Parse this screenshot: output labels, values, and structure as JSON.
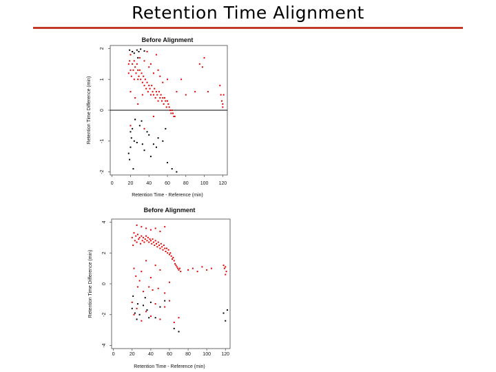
{
  "slide": {
    "title": "Retention Time Alignment"
  },
  "colors": {
    "accent_rule": "#c0392b",
    "matched_points": "#e00000",
    "other_points": "#000000"
  },
  "chart_data": [
    {
      "type": "scatter",
      "title": "Before Alignment",
      "xlabel": "Retention Time - Reference (min)",
      "ylabel": "Retention Time Difference (min)",
      "xlim": [
        -2,
        125
      ],
      "ylim": [
        -2.1,
        2.1
      ],
      "xticks": [
        0,
        20,
        40,
        60,
        80,
        100,
        120
      ],
      "yticks": [
        -2,
        -1,
        0,
        1,
        2
      ],
      "reference_line_y": 0,
      "grid": false,
      "legend": "none",
      "series": [
        {
          "color": "#e00000",
          "points": [
            [
              18,
              1.5
            ],
            [
              18,
              1.2
            ],
            [
              19,
              1.6
            ],
            [
              20,
              1.3
            ],
            [
              20,
              1.8
            ],
            [
              21,
              1.1
            ],
            [
              22,
              1.5
            ],
            [
              22,
              1.9
            ],
            [
              23,
              1.3
            ],
            [
              24,
              1.0
            ],
            [
              24,
              1.6
            ],
            [
              25,
              1.4
            ],
            [
              26,
              1.2
            ],
            [
              27,
              1.5
            ],
            [
              28,
              1.3
            ],
            [
              28,
              1.0
            ],
            [
              29,
              1.1
            ],
            [
              30,
              1.3
            ],
            [
              31,
              1.0
            ],
            [
              32,
              1.2
            ],
            [
              33,
              0.9
            ],
            [
              34,
              1.1
            ],
            [
              35,
              0.8
            ],
            [
              36,
              1.0
            ],
            [
              37,
              0.7
            ],
            [
              38,
              0.9
            ],
            [
              39,
              0.6
            ],
            [
              40,
              0.8
            ],
            [
              41,
              0.7
            ],
            [
              42,
              0.5
            ],
            [
              43,
              0.8
            ],
            [
              44,
              0.6
            ],
            [
              45,
              0.5
            ],
            [
              46,
              0.7
            ],
            [
              47,
              0.4
            ],
            [
              48,
              0.6
            ],
            [
              49,
              0.5
            ],
            [
              50,
              0.3
            ],
            [
              51,
              0.6
            ],
            [
              52,
              0.4
            ],
            [
              53,
              0.5
            ],
            [
              54,
              0.3
            ],
            [
              55,
              0.4
            ],
            [
              56,
              0.2
            ],
            [
              57,
              0.4
            ],
            [
              58,
              0.3
            ],
            [
              59,
              0.1
            ],
            [
              60,
              0.3
            ],
            [
              61,
              0.2
            ],
            [
              62,
              0.1
            ],
            [
              63,
              0.0
            ],
            [
              64,
              -0.1
            ],
            [
              65,
              0.0
            ],
            [
              66,
              -0.1
            ],
            [
              67,
              -0.2
            ],
            [
              68,
              -0.2
            ],
            [
              20,
              0.6
            ],
            [
              25,
              0.4
            ],
            [
              30,
              1.7
            ],
            [
              35,
              1.6
            ],
            [
              40,
              1.4
            ],
            [
              45,
              1.2
            ],
            [
              50,
              1.3
            ],
            [
              55,
              0.9
            ],
            [
              60,
              1.0
            ],
            [
              48,
              1.8
            ],
            [
              20,
              -0.5
            ],
            [
              25,
              -0.3
            ],
            [
              35,
              -0.6
            ],
            [
              45,
              -0.2
            ],
            [
              38,
              1.9
            ],
            [
              42,
              1.5
            ],
            [
              52,
              1.1
            ],
            [
              28,
              0.2
            ],
            [
              33,
              0.5
            ],
            [
              70,
              0.6
            ],
            [
              75,
              1.0
            ],
            [
              80,
              0.5
            ],
            [
              90,
              0.6
            ],
            [
              95,
              1.5
            ],
            [
              98,
              1.4
            ],
            [
              100,
              1.7
            ],
            [
              104,
              0.6
            ],
            [
              117,
              0.8
            ],
            [
              118,
              0.5
            ],
            [
              119,
              0.3
            ],
            [
              120,
              0.2
            ],
            [
              121,
              0.5
            ],
            [
              120,
              0.1
            ]
          ]
        },
        {
          "color": "#000000",
          "points": [
            [
              19,
              1.95
            ],
            [
              22,
              1.9
            ],
            [
              24,
              1.85
            ],
            [
              27,
              1.95
            ],
            [
              29,
              1.9
            ],
            [
              31,
              1.98
            ],
            [
              35,
              1.92
            ],
            [
              28,
              1.7
            ],
            [
              20,
              -0.7
            ],
            [
              21,
              -0.9
            ],
            [
              18,
              -1.4
            ],
            [
              20,
              -1.2
            ],
            [
              22,
              -0.6
            ],
            [
              24,
              -1.0
            ],
            [
              27,
              -1.05
            ],
            [
              30,
              -0.5
            ],
            [
              33,
              -1.1
            ],
            [
              35,
              -1.3
            ],
            [
              40,
              -0.8
            ],
            [
              45,
              -1.1
            ],
            [
              48,
              -1.2
            ],
            [
              55,
              -1.0
            ],
            [
              60,
              -1.7
            ],
            [
              65,
              -1.9
            ],
            [
              70,
              -2.0
            ],
            [
              19,
              -1.6
            ],
            [
              25,
              -0.3
            ],
            [
              32,
              -0.35
            ],
            [
              50,
              -0.9
            ],
            [
              38,
              -0.7
            ],
            [
              42,
              -1.5
            ],
            [
              23,
              -1.9
            ],
            [
              58,
              -0.6
            ]
          ]
        }
      ]
    },
    {
      "type": "scatter",
      "title": "Before Alignment",
      "xlabel": "Retention Time - Reference (min)",
      "ylabel": "Retention Time Difference (min)",
      "xlim": [
        -2,
        125
      ],
      "ylim": [
        -4.2,
        4.2
      ],
      "xticks": [
        0,
        20,
        40,
        60,
        80,
        100,
        120
      ],
      "yticks": [
        -4,
        -2,
        0,
        2,
        4
      ],
      "grid": false,
      "legend": "none",
      "series": [
        {
          "color": "#e00000",
          "points": [
            [
              20,
              3.0
            ],
            [
              21,
              2.5
            ],
            [
              22,
              3.3
            ],
            [
              23,
              2.8
            ],
            [
              24,
              3.1
            ],
            [
              25,
              2.7
            ],
            [
              26,
              3.2
            ],
            [
              27,
              2.9
            ],
            [
              28,
              3.0
            ],
            [
              29,
              2.6
            ],
            [
              30,
              3.1
            ],
            [
              31,
              2.8
            ],
            [
              32,
              3.0
            ],
            [
              33,
              2.7
            ],
            [
              34,
              2.9
            ],
            [
              35,
              3.1
            ],
            [
              36,
              2.8
            ],
            [
              37,
              3.0
            ],
            [
              38,
              2.7
            ],
            [
              39,
              2.9
            ],
            [
              40,
              2.8
            ],
            [
              41,
              2.6
            ],
            [
              42,
              2.9
            ],
            [
              43,
              2.7
            ],
            [
              44,
              2.5
            ],
            [
              45,
              2.8
            ],
            [
              46,
              2.6
            ],
            [
              47,
              2.4
            ],
            [
              48,
              2.7
            ],
            [
              49,
              2.5
            ],
            [
              50,
              2.3
            ],
            [
              51,
              2.6
            ],
            [
              52,
              2.4
            ],
            [
              53,
              2.2
            ],
            [
              54,
              2.5
            ],
            [
              55,
              2.3
            ],
            [
              56,
              2.1
            ],
            [
              57,
              2.3
            ],
            [
              58,
              2.0
            ],
            [
              59,
              2.2
            ],
            [
              60,
              1.9
            ],
            [
              61,
              2.0
            ],
            [
              62,
              1.8
            ],
            [
              63,
              1.6
            ],
            [
              64,
              1.7
            ],
            [
              65,
              1.5
            ],
            [
              66,
              1.3
            ],
            [
              67,
              1.2
            ],
            [
              68,
              1.1
            ],
            [
              69,
              1.0
            ],
            [
              70,
              0.9
            ],
            [
              71,
              1.0
            ],
            [
              72,
              0.8
            ],
            [
              25,
              3.8
            ],
            [
              30,
              3.7
            ],
            [
              35,
              3.6
            ],
            [
              40,
              3.5
            ],
            [
              45,
              3.6
            ],
            [
              50,
              3.4
            ],
            [
              55,
              3.7
            ],
            [
              22,
              1.0
            ],
            [
              24,
              0.5
            ],
            [
              26,
              -0.2
            ],
            [
              28,
              0.2
            ],
            [
              30,
              0.8
            ],
            [
              32,
              -0.5
            ],
            [
              35,
              1.5
            ],
            [
              38,
              -0.2
            ],
            [
              40,
              0.4
            ],
            [
              42,
              -0.4
            ],
            [
              45,
              1.2
            ],
            [
              48,
              -0.3
            ],
            [
              50,
              0.9
            ],
            [
              55,
              -0.6
            ],
            [
              60,
              0.1
            ],
            [
              20,
              -1.2
            ],
            [
              22,
              -2.0
            ],
            [
              25,
              -1.6
            ],
            [
              30,
              -2.4
            ],
            [
              35,
              -1.8
            ],
            [
              40,
              -2.1
            ],
            [
              45,
              -1.3
            ],
            [
              50,
              -2.3
            ],
            [
              55,
              -1.5
            ],
            [
              60,
              -1.1
            ],
            [
              65,
              -2.5
            ],
            [
              70,
              -2.2
            ],
            [
              80,
              0.9
            ],
            [
              85,
              1.0
            ],
            [
              90,
              0.8
            ],
            [
              95,
              1.1
            ],
            [
              100,
              0.9
            ],
            [
              105,
              1.0
            ],
            [
              118,
              1.2
            ],
            [
              119,
              1.0
            ],
            [
              120,
              1.1
            ],
            [
              121,
              0.8
            ],
            [
              120,
              0.6
            ]
          ]
        },
        {
          "color": "#000000",
          "points": [
            [
              20,
              -1.6
            ],
            [
              23,
              -1.9
            ],
            [
              26,
              -1.3
            ],
            [
              28,
              -2.0
            ],
            [
              32,
              -1.4
            ],
            [
              36,
              -1.7
            ],
            [
              40,
              -1.2
            ],
            [
              45,
              -2.2
            ],
            [
              50,
              -1.5
            ],
            [
              55,
              -1.1
            ],
            [
              25,
              -2.3
            ],
            [
              38,
              -2.2
            ],
            [
              65,
              -2.9
            ],
            [
              70,
              -3.1
            ],
            [
              118,
              -1.9
            ],
            [
              120,
              -2.4
            ],
            [
              122,
              -1.7
            ],
            [
              21,
              -0.8
            ],
            [
              34,
              -0.9
            ]
          ]
        }
      ]
    }
  ]
}
